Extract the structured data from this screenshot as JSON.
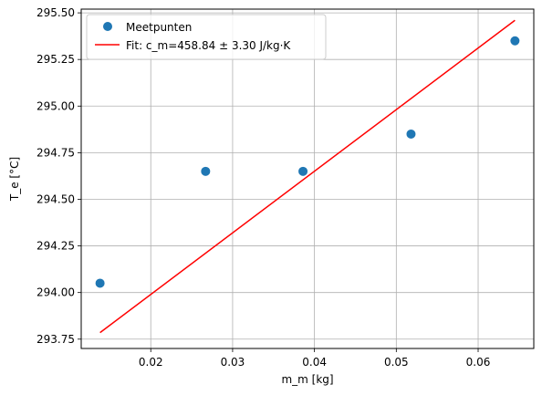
{
  "chart_data": {
    "type": "scatter",
    "xlabel": "m_m [kg]",
    "ylabel": "T_e [°C]",
    "xlim": [
      0.0115,
      0.0668
    ],
    "ylim": [
      293.7,
      295.52
    ],
    "xticks": [
      0.02,
      0.03,
      0.04,
      0.05,
      0.06
    ],
    "xtick_labels": [
      "0.02",
      "0.03",
      "0.04",
      "0.05",
      "0.06"
    ],
    "yticks": [
      293.75,
      294.0,
      294.25,
      294.5,
      294.75,
      295.0,
      295.25,
      295.5
    ],
    "ytick_labels": [
      "293.75",
      "294.00",
      "294.25",
      "294.50",
      "294.75",
      "295.00",
      "295.25",
      "295.50"
    ],
    "grid": true,
    "legend_position": "top-left",
    "series": [
      {
        "name": "Meetpunten",
        "kind": "scatter",
        "color": "#1f77b4",
        "x": [
          0.0138,
          0.0267,
          0.0386,
          0.0518,
          0.0645
        ],
        "y": [
          294.05,
          294.65,
          294.65,
          294.85,
          295.35
        ]
      },
      {
        "name": "Fit: c_m=458.84 ± 3.30 J/kg·K",
        "kind": "line",
        "color": "#ff0000",
        "x": [
          0.0138,
          0.0645
        ],
        "y": [
          293.785,
          295.46
        ]
      }
    ]
  }
}
